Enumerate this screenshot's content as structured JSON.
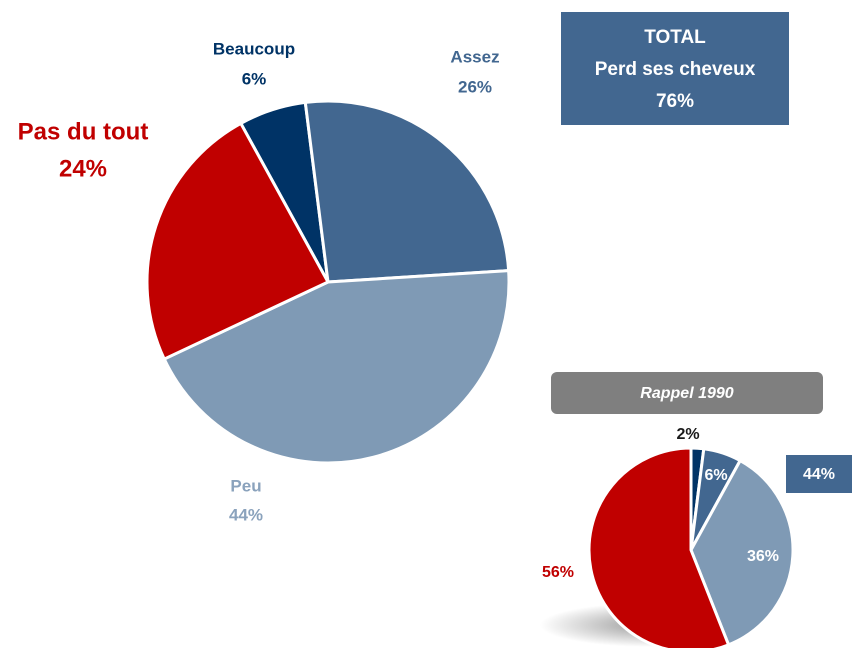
{
  "chart_data": [
    {
      "type": "pie",
      "categories": [
        "Beaucoup",
        "Assez",
        "Peu",
        "Pas du tout"
      ],
      "values": [
        6,
        26,
        44,
        24
      ],
      "value_labels": [
        "6%",
        "26%",
        "44%",
        "24%"
      ],
      "colors": [
        "#003366",
        "#426790",
        "#7f9ab5",
        "#c00000"
      ],
      "annotation": [
        "TOTAL",
        "Perd ses cheveux",
        "76%"
      ]
    },
    {
      "type": "pie",
      "title": "Rappel 1990",
      "values": [
        2,
        6,
        36,
        56
      ],
      "value_labels": [
        "2%",
        "6%",
        "36%",
        "56%"
      ],
      "colors": [
        "#003366",
        "#426790",
        "#7f9ab5",
        "#c00000"
      ],
      "annotation": "44%"
    }
  ]
}
